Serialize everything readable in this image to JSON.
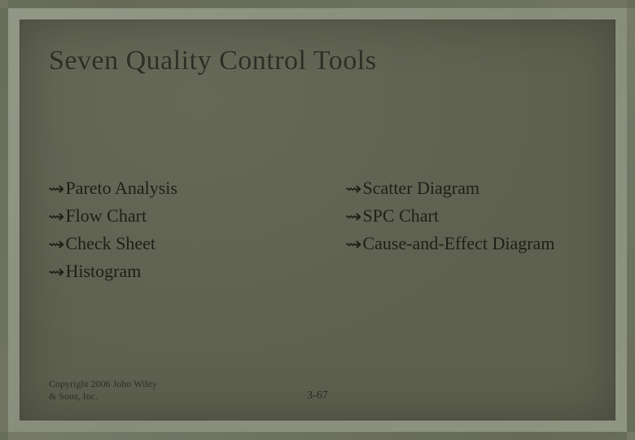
{
  "title": "Seven Quality Control Tools",
  "left_items": [
    "Pareto Analysis",
    "Flow Chart",
    "Check Sheet",
    "Histogram"
  ],
  "right_items": [
    "Scatter Diagram",
    "SPC Chart",
    "Cause-and-Effect Diagram"
  ],
  "bullet_glyph": "ༀ",
  "copyright_line1": "Copyright 2006 John Wiley",
  "copyright_line2": "& Sons, Inc.",
  "page_number": "3-67",
  "colors": {
    "outer_bg": "#7a8270",
    "inner_bg": "#5e614f",
    "title_color": "#2e2f27",
    "text_color": "#1e1f18"
  }
}
